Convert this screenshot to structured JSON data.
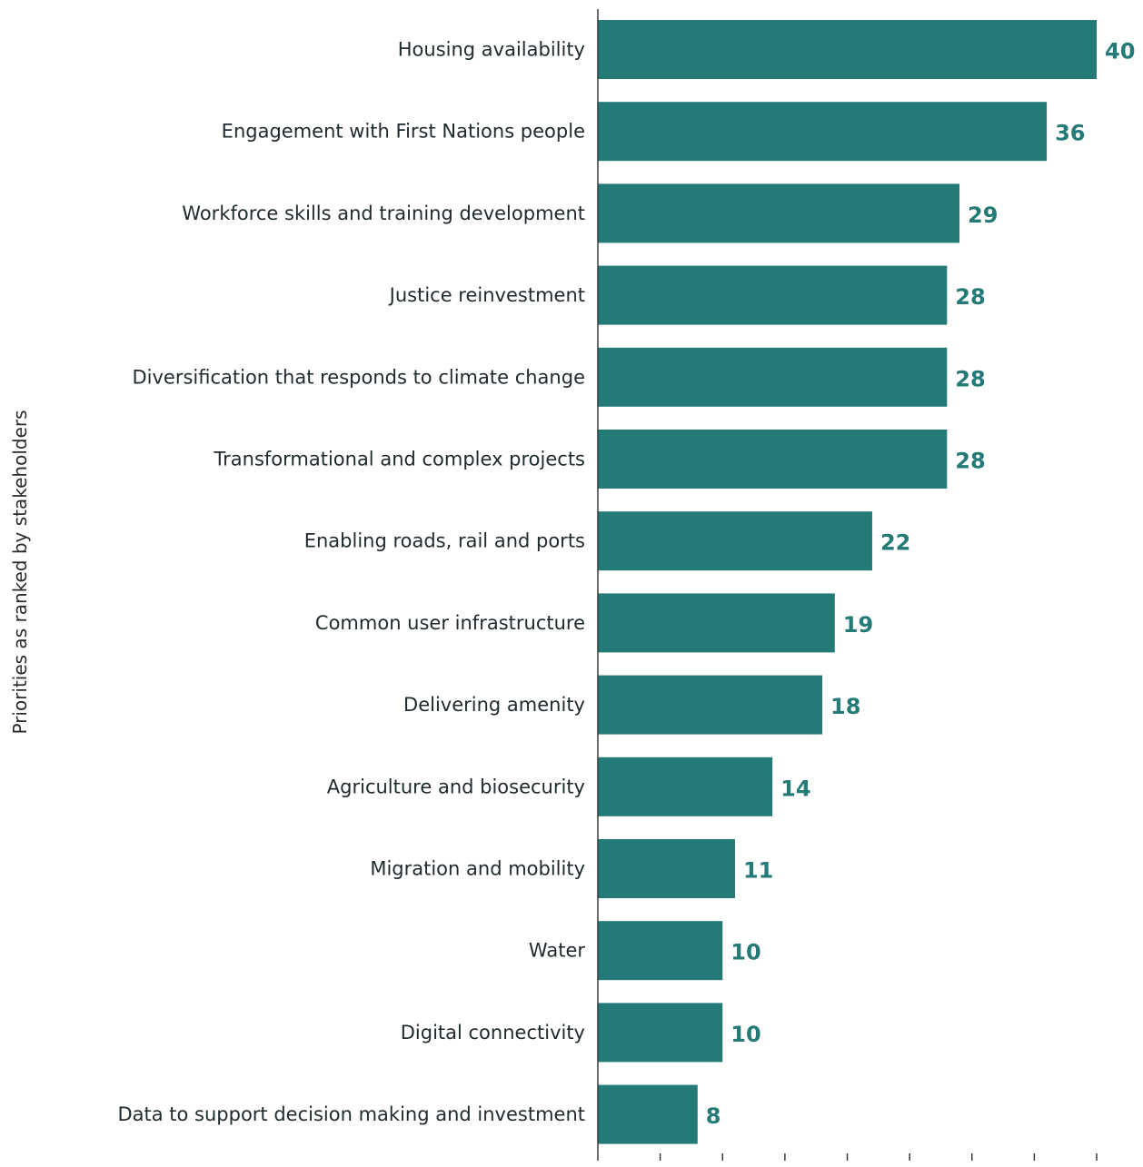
{
  "chart_data": {
    "type": "bar",
    "orientation": "horizontal",
    "ylabel": "Priorities as ranked by stakeholders",
    "xlabel": "",
    "xlim": [
      0,
      40
    ],
    "x_tick_step": 5,
    "grid": false,
    "legend": "none",
    "bar_color": "#247a76",
    "value_label_color": "#247a76",
    "categories": [
      "Housing availability",
      "Engagement with First Nations people",
      "Workforce skills and training development",
      "Justice reinvestment",
      "Diversification that responds to climate change",
      "Transformational and complex projects",
      "Enabling roads, rail and ports",
      "Common user infrastructure",
      "Delivering amenity",
      "Agriculture and biosecurity",
      "Migration and mobility",
      "Water",
      "Digital connectivity",
      "Data to support decision making and investment"
    ],
    "values": [
      40,
      36,
      29,
      28,
      28,
      28,
      22,
      19,
      18,
      14,
      11,
      10,
      10,
      8
    ]
  }
}
